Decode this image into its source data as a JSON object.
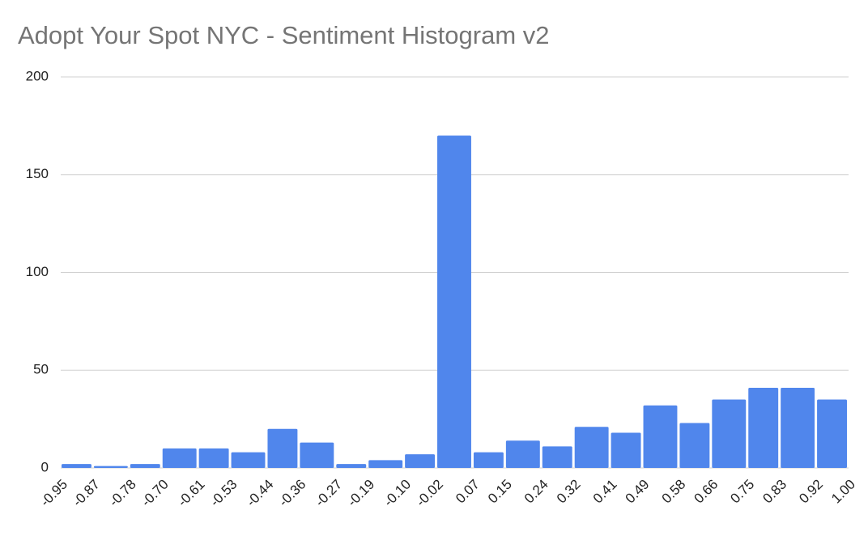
{
  "chart_data": {
    "type": "histogram",
    "title": "Adopt Your Spot NYC - Sentiment Histogram v2",
    "bins": [
      -0.95,
      -0.87,
      -0.78,
      -0.7,
      -0.61,
      -0.53,
      -0.44,
      -0.36,
      -0.27,
      -0.19,
      -0.1,
      -0.02,
      0.07,
      0.15,
      0.24,
      0.32,
      0.41,
      0.49,
      0.58,
      0.66,
      0.75,
      0.83,
      0.92,
      1
    ],
    "values": [
      2,
      1,
      2,
      10,
      10,
      8,
      20,
      13,
      2,
      4,
      7,
      170,
      8,
      14,
      11,
      21,
      18,
      32,
      23,
      35,
      41,
      41,
      35
    ],
    "color": "#5086ec",
    "xlim": [
      -0.95,
      1
    ],
    "xticks": [
      -0.95,
      -0.87,
      -0.78,
      {
        "value": -0.7,
        "label": "-0.70"
      },
      -0.61,
      -0.53,
      -0.44,
      -0.36,
      -0.27,
      -0.19,
      {
        "value": -0.1,
        "label": "-0.10"
      },
      -0.02,
      0.07,
      0.15,
      0.24,
      0.32,
      0.41,
      0.49,
      0.58,
      0.66,
      0.75,
      0.83,
      0.92,
      {
        "value": 1,
        "label": "1.00"
      }
    ],
    "ylim": [
      0,
      200
    ],
    "yticks": [
      0,
      50,
      100,
      150,
      200
    ],
    "grid": true
  }
}
